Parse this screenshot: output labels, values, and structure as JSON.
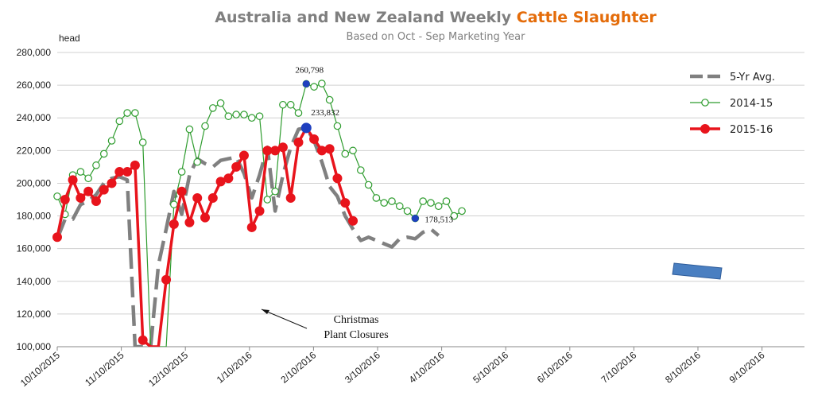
{
  "chart_data": {
    "type": "line",
    "title": {
      "part1": "Australia and New Zealand Weekly ",
      "part2": "Cattle Slaughter",
      "part1_color": "#7f7f7f",
      "part2_color": "#e46c0a"
    },
    "subtitle": "Based on Oct - Sep Marketing Year",
    "ylabel": "head",
    "ylim": [
      100000,
      280000
    ],
    "yticks": [
      "100,000",
      "120,000",
      "140,000",
      "160,000",
      "180,000",
      "200,000",
      "220,000",
      "240,000",
      "260,000",
      "280,000"
    ],
    "xticks": [
      "10/10/2015",
      "11/10/2015",
      "12/10/2015",
      "1/10/2016",
      "2/10/2016",
      "3/10/2016",
      "4/10/2016",
      "5/10/2016",
      "6/10/2016",
      "7/10/2016",
      "8/10/2016",
      "9/10/2016"
    ],
    "grid": true,
    "legend_position": "right",
    "series": [
      {
        "name": "5-Yr Avg.",
        "color": "#808080",
        "style": "dashed",
        "values": [
          166000,
          178000,
          178000,
          187000,
          189000,
          193000,
          200000,
          203000,
          204000,
          202000,
          100000,
          90000,
          90000,
          150000,
          172000,
          195000,
          181000,
          205000,
          215000,
          212000,
          210000,
          214000,
          215000,
          216000,
          206000,
          191000,
          205000,
          222000,
          183000,
          205000,
          222000,
          233000,
          234000,
          226000,
          213000,
          198000,
          192000,
          180000,
          172000,
          165000,
          167000,
          165000,
          163000,
          161000,
          166000,
          167000,
          166000,
          170000,
          172000,
          168000
        ]
      },
      {
        "name": "2014-15",
        "color": "#2e9c2e",
        "style": "line-hollow-markers",
        "values": [
          192000,
          181000,
          205000,
          207000,
          203000,
          211000,
          218000,
          226000,
          238000,
          243000,
          243000,
          225000,
          94000,
          94000,
          94000,
          187000,
          207000,
          233000,
          213000,
          235000,
          246000,
          249000,
          241000,
          242000,
          242000,
          240000,
          241000,
          190000,
          195000,
          248000,
          248000,
          243000,
          260798,
          259000,
          261000,
          251000,
          235000,
          218000,
          220000,
          208000,
          199000,
          191000,
          188000,
          189000,
          186000,
          183000,
          178513,
          189000,
          188000,
          186000,
          189000,
          180000,
          183000
        ]
      },
      {
        "name": "2015-16",
        "color": "#e8141c",
        "style": "line-filled-markers",
        "values": [
          167000,
          190000,
          202000,
          191000,
          195000,
          189000,
          196000,
          200000,
          207000,
          207000,
          211000,
          104000,
          94000,
          94000,
          141000,
          175000,
          195000,
          176000,
          191000,
          179000,
          191000,
          201000,
          203000,
          210000,
          217000,
          173000,
          183000,
          220000,
          220000,
          222000,
          191000,
          225000,
          233832,
          227000,
          220000,
          221000,
          203000,
          188000,
          177000
        ]
      }
    ],
    "data_labels": [
      {
        "text": "260,798",
        "series": "2014-15",
        "index": 32
      },
      {
        "text": "233,832",
        "series": "2015-16",
        "index": 32
      },
      {
        "text": "178,513",
        "series": "2014-15",
        "index": 46
      }
    ],
    "highlight_color": "#1f3fbf",
    "annotation": {
      "line1": "Christmas",
      "line2": "Plant Closures"
    },
    "marker_box_color": "#4a7fc1"
  }
}
